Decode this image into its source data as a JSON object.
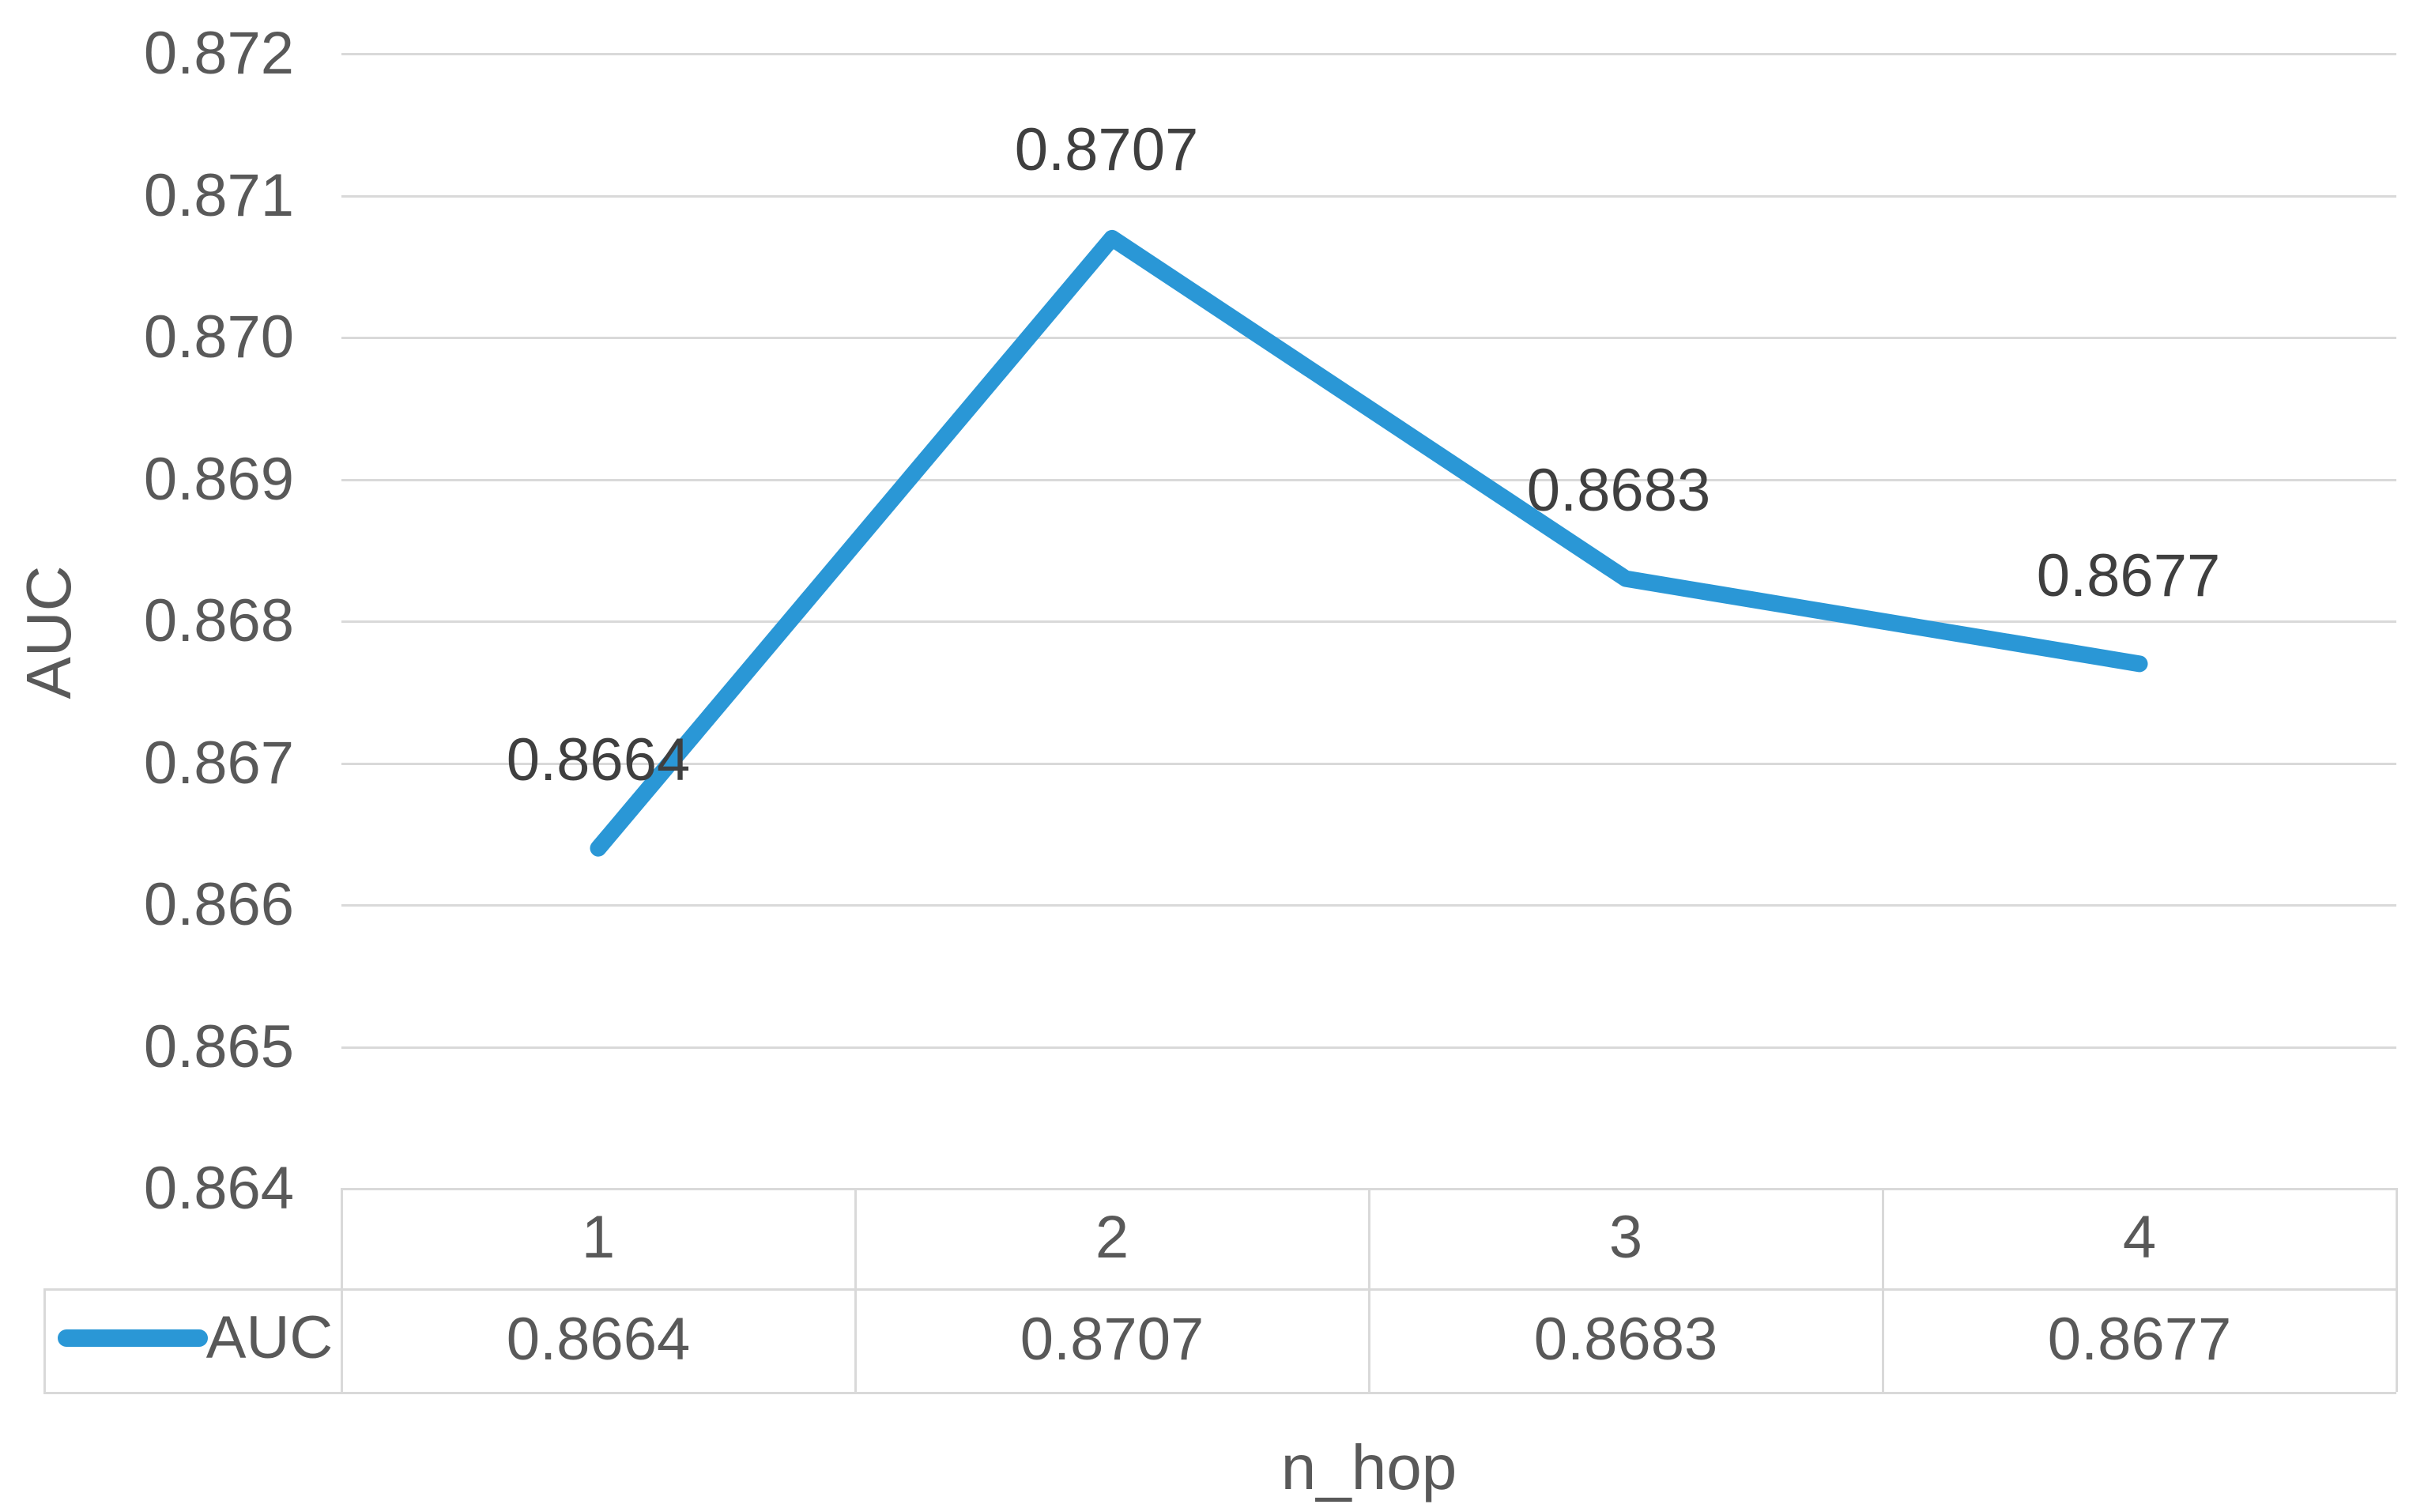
{
  "chart_data": {
    "type": "line",
    "title": "",
    "xlabel": "n_hop",
    "ylabel": "AUC",
    "categories": [
      "1",
      "2",
      "3",
      "4"
    ],
    "series": [
      {
        "name": "AUC",
        "values": [
          0.8664,
          0.8707,
          0.8683,
          0.8677
        ]
      }
    ],
    "data_labels": [
      "0.8664",
      "0.8707",
      "0.8683",
      "0.8677"
    ],
    "yticks": [
      "0.872",
      "0.871",
      "0.870",
      "0.869",
      "0.868",
      "0.867",
      "0.866",
      "0.865",
      "0.864"
    ],
    "ylim": [
      0.864,
      0.872
    ],
    "grid": "horizontal",
    "legend_position": "data-table-left",
    "data_table_values": [
      "0.8664",
      "0.8707",
      "0.8683",
      "0.8677"
    ]
  },
  "colors": {
    "line": "#2a97d6",
    "grid": "#d9d9d9",
    "axis_text": "#595959",
    "data_label_text": "#3f3f3f",
    "table_border": "#d9d9d9"
  }
}
